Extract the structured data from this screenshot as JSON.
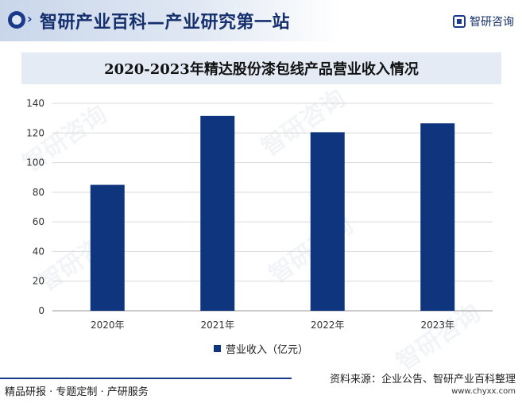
{
  "header": {
    "title": "智研产业百科—产业研究第一站",
    "brand": "智研咨询"
  },
  "chart_data": {
    "type": "bar",
    "title": "2020-2023年精达股份漆包线产品营业收入情况",
    "categories": [
      "2020年",
      "2021年",
      "2022年",
      "2023年"
    ],
    "series": [
      {
        "name": "营业收入（亿元）",
        "values": [
          85,
          131.5,
          120.5,
          126.5
        ]
      }
    ],
    "yticks": [
      "0",
      "20",
      "40",
      "60",
      "80",
      "100",
      "120",
      "140"
    ],
    "ylim": [
      0,
      140
    ],
    "grid": true,
    "legend_position": "bottom",
    "bar_color": "#10357f"
  },
  "footer": {
    "left": "精品研报 · 专题定制 · 产研服务",
    "source": "资料来源：企业公告、智研产业百科整理",
    "url": "www.chyxx.com"
  },
  "watermark": "智研咨询"
}
